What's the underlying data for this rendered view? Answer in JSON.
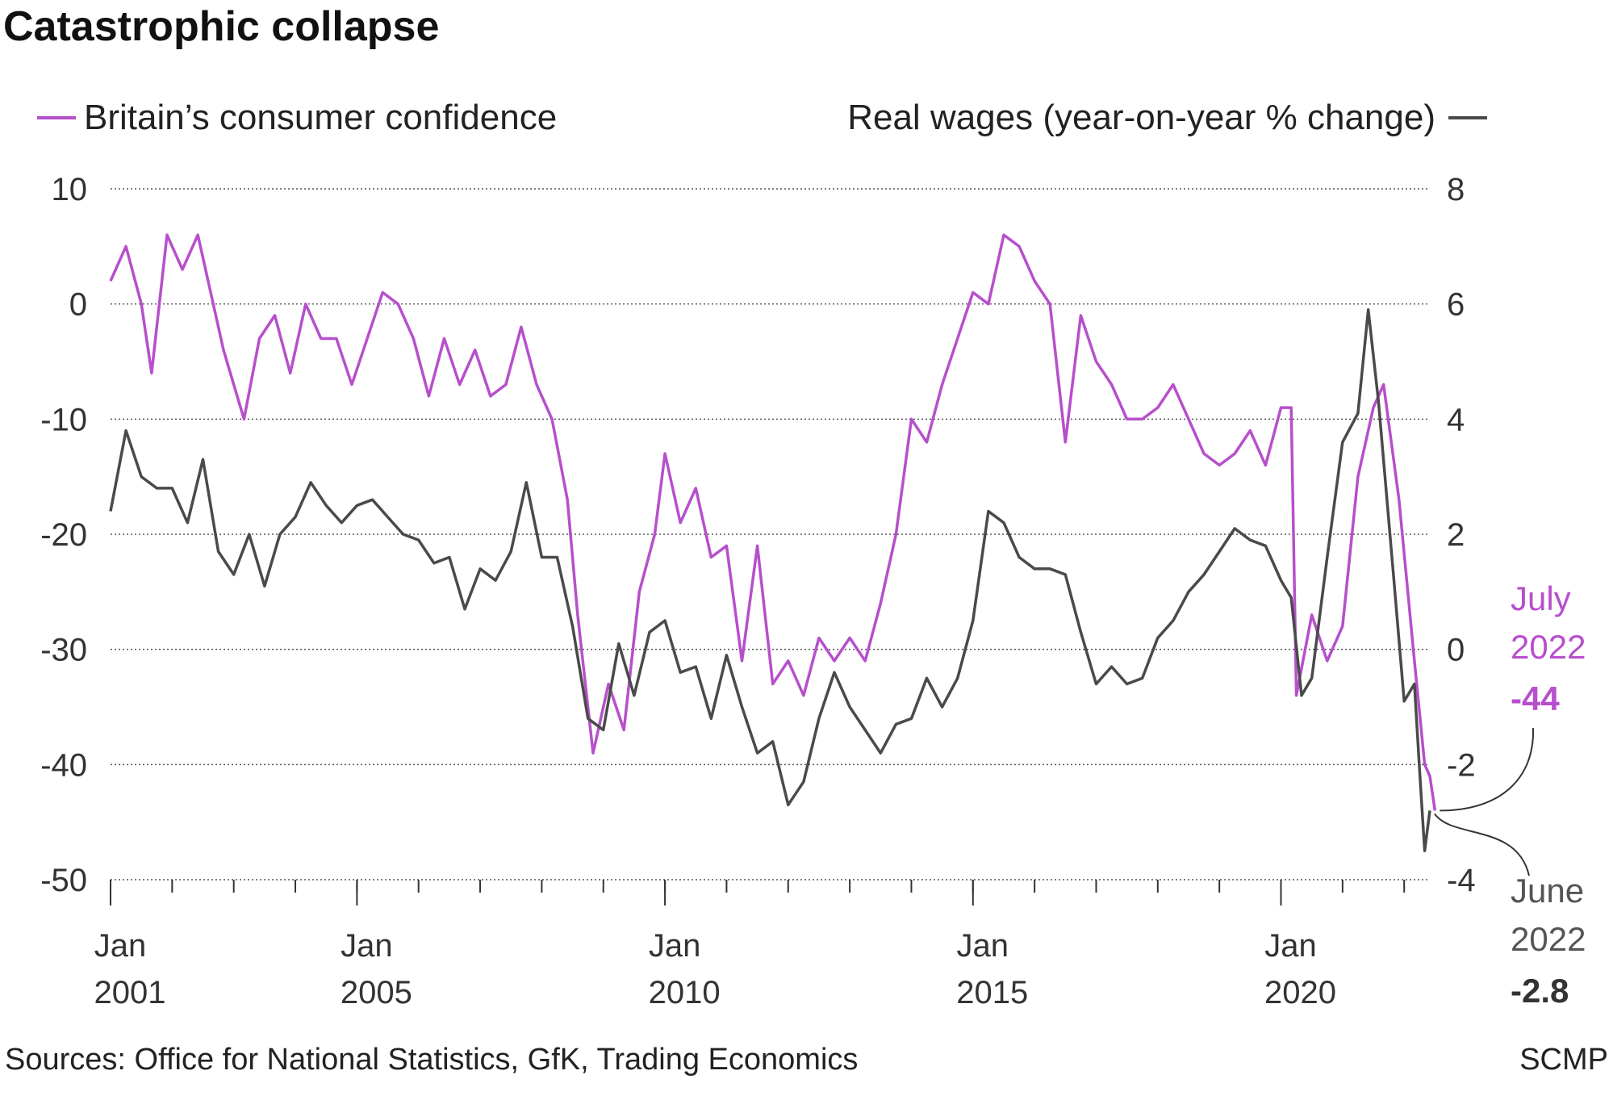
{
  "chart_data": {
    "type": "line",
    "title": "Catastrophic collapse",
    "x_tick_labels": [
      {
        "month": "Jan",
        "year": "2001"
      },
      {
        "month": "Jan",
        "year": "2005"
      },
      {
        "month": "Jan",
        "year": "2010"
      },
      {
        "month": "Jan",
        "year": "2015"
      },
      {
        "month": "Jan",
        "year": "2020"
      }
    ],
    "x_range": [
      "2001-01",
      "2022-07"
    ],
    "left_axis": {
      "ticks": [
        "10",
        "0",
        "-10",
        "-20",
        "-30",
        "-40",
        "-50"
      ],
      "ylim": [
        -50,
        10
      ]
    },
    "right_axis": {
      "ticks": [
        "8",
        "6",
        "4",
        "2",
        "0",
        "-2",
        "-4"
      ],
      "ylim": [
        -4,
        8
      ]
    },
    "grid": true,
    "legend_placement": "top",
    "series": [
      {
        "name": "Britain’s consumer confidence",
        "axis": "left",
        "color": "#b74fcc",
        "points": [
          [
            "2001-01",
            2
          ],
          [
            "2001-04",
            5
          ],
          [
            "2001-07",
            0
          ],
          [
            "2001-09",
            -6
          ],
          [
            "2001-12",
            6
          ],
          [
            "2002-03",
            3
          ],
          [
            "2002-06",
            6
          ],
          [
            "2002-08",
            2
          ],
          [
            "2002-11",
            -4
          ],
          [
            "2003-03",
            -10
          ],
          [
            "2003-06",
            -3
          ],
          [
            "2003-09",
            -1
          ],
          [
            "2003-12",
            -6
          ],
          [
            "2004-03",
            0
          ],
          [
            "2004-06",
            -3
          ],
          [
            "2004-09",
            -3
          ],
          [
            "2004-12",
            -7
          ],
          [
            "2005-03",
            -3
          ],
          [
            "2005-06",
            1
          ],
          [
            "2005-09",
            0
          ],
          [
            "2005-12",
            -3
          ],
          [
            "2006-03",
            -8
          ],
          [
            "2006-06",
            -3
          ],
          [
            "2006-09",
            -7
          ],
          [
            "2006-12",
            -4
          ],
          [
            "2007-03",
            -8
          ],
          [
            "2007-06",
            -7
          ],
          [
            "2007-09",
            -2
          ],
          [
            "2007-12",
            -7
          ],
          [
            "2008-03",
            -10
          ],
          [
            "2008-06",
            -17
          ],
          [
            "2008-08",
            -27
          ],
          [
            "2008-11",
            -39
          ],
          [
            "2009-02",
            -33
          ],
          [
            "2009-05",
            -37
          ],
          [
            "2009-08",
            -25
          ],
          [
            "2009-11",
            -20
          ],
          [
            "2010-01",
            -13
          ],
          [
            "2010-04",
            -19
          ],
          [
            "2010-07",
            -16
          ],
          [
            "2010-10",
            -22
          ],
          [
            "2011-01",
            -21
          ],
          [
            "2011-04",
            -31
          ],
          [
            "2011-07",
            -21
          ],
          [
            "2011-10",
            -33
          ],
          [
            "2012-01",
            -31
          ],
          [
            "2012-04",
            -34
          ],
          [
            "2012-07",
            -29
          ],
          [
            "2012-10",
            -31
          ],
          [
            "2013-01",
            -29
          ],
          [
            "2013-04",
            -31
          ],
          [
            "2013-07",
            -26
          ],
          [
            "2013-10",
            -20
          ],
          [
            "2014-01",
            -10
          ],
          [
            "2014-04",
            -12
          ],
          [
            "2014-07",
            -7
          ],
          [
            "2014-10",
            -3
          ],
          [
            "2015-01",
            1
          ],
          [
            "2015-04",
            0
          ],
          [
            "2015-07",
            6
          ],
          [
            "2015-10",
            5
          ],
          [
            "2016-01",
            2
          ],
          [
            "2016-04",
            0
          ],
          [
            "2016-07",
            -12
          ],
          [
            "2016-10",
            -1
          ],
          [
            "2017-01",
            -5
          ],
          [
            "2017-04",
            -7
          ],
          [
            "2017-07",
            -10
          ],
          [
            "2017-10",
            -10
          ],
          [
            "2018-01",
            -9
          ],
          [
            "2018-04",
            -7
          ],
          [
            "2018-07",
            -10
          ],
          [
            "2018-10",
            -13
          ],
          [
            "2019-01",
            -14
          ],
          [
            "2019-04",
            -13
          ],
          [
            "2019-07",
            -11
          ],
          [
            "2019-10",
            -14
          ],
          [
            "2020-01",
            -9
          ],
          [
            "2020-03",
            -9
          ],
          [
            "2020-04",
            -34
          ],
          [
            "2020-07",
            -27
          ],
          [
            "2020-10",
            -31
          ],
          [
            "2021-01",
            -28
          ],
          [
            "2021-04",
            -15
          ],
          [
            "2021-07",
            -9
          ],
          [
            "2021-09",
            -7
          ],
          [
            "2021-12",
            -17
          ],
          [
            "2022-03",
            -31
          ],
          [
            "2022-05",
            -40
          ],
          [
            "2022-06",
            -41
          ],
          [
            "2022-07",
            -44
          ]
        ],
        "end_label": {
          "period": [
            "July",
            "2022"
          ],
          "value": "-44"
        }
      },
      {
        "name": "Real wages (year-on-year % change)",
        "axis": "right",
        "color": "#4a4a4a",
        "points": [
          [
            "2001-01",
            2.4
          ],
          [
            "2001-04",
            3.8
          ],
          [
            "2001-07",
            3.0
          ],
          [
            "2001-10",
            2.8
          ],
          [
            "2002-01",
            2.8
          ],
          [
            "2002-04",
            2.2
          ],
          [
            "2002-07",
            3.3
          ],
          [
            "2002-10",
            1.7
          ],
          [
            "2003-01",
            1.3
          ],
          [
            "2003-04",
            2.0
          ],
          [
            "2003-07",
            1.1
          ],
          [
            "2003-10",
            2.0
          ],
          [
            "2004-01",
            2.3
          ],
          [
            "2004-04",
            2.9
          ],
          [
            "2004-07",
            2.5
          ],
          [
            "2004-10",
            2.2
          ],
          [
            "2005-01",
            2.5
          ],
          [
            "2005-04",
            2.6
          ],
          [
            "2005-07",
            2.3
          ],
          [
            "2005-10",
            2.0
          ],
          [
            "2006-01",
            1.9
          ],
          [
            "2006-04",
            1.5
          ],
          [
            "2006-07",
            1.6
          ],
          [
            "2006-10",
            0.7
          ],
          [
            "2007-01",
            1.4
          ],
          [
            "2007-04",
            1.2
          ],
          [
            "2007-07",
            1.7
          ],
          [
            "2007-10",
            2.9
          ],
          [
            "2008-01",
            1.6
          ],
          [
            "2008-04",
            1.6
          ],
          [
            "2008-07",
            0.4
          ],
          [
            "2008-10",
            -1.2
          ],
          [
            "2009-01",
            -1.4
          ],
          [
            "2009-04",
            0.1
          ],
          [
            "2009-07",
            -0.8
          ],
          [
            "2009-10",
            0.3
          ],
          [
            "2010-01",
            0.5
          ],
          [
            "2010-04",
            -0.4
          ],
          [
            "2010-07",
            -0.3
          ],
          [
            "2010-10",
            -1.2
          ],
          [
            "2011-01",
            -0.1
          ],
          [
            "2011-04",
            -1.0
          ],
          [
            "2011-07",
            -1.8
          ],
          [
            "2011-10",
            -1.6
          ],
          [
            "2012-01",
            -2.7
          ],
          [
            "2012-04",
            -2.3
          ],
          [
            "2012-07",
            -1.2
          ],
          [
            "2012-10",
            -0.4
          ],
          [
            "2013-01",
            -1.0
          ],
          [
            "2013-04",
            -1.4
          ],
          [
            "2013-07",
            -1.8
          ],
          [
            "2013-10",
            -1.3
          ],
          [
            "2014-01",
            -1.2
          ],
          [
            "2014-04",
            -0.5
          ],
          [
            "2014-07",
            -1.0
          ],
          [
            "2014-10",
            -0.5
          ],
          [
            "2015-01",
            0.5
          ],
          [
            "2015-04",
            2.4
          ],
          [
            "2015-07",
            2.2
          ],
          [
            "2015-10",
            1.6
          ],
          [
            "2016-01",
            1.4
          ],
          [
            "2016-04",
            1.4
          ],
          [
            "2016-07",
            1.3
          ],
          [
            "2016-10",
            0.3
          ],
          [
            "2017-01",
            -0.6
          ],
          [
            "2017-04",
            -0.3
          ],
          [
            "2017-07",
            -0.6
          ],
          [
            "2017-10",
            -0.5
          ],
          [
            "2018-01",
            0.2
          ],
          [
            "2018-04",
            0.5
          ],
          [
            "2018-07",
            1.0
          ],
          [
            "2018-10",
            1.3
          ],
          [
            "2019-01",
            1.7
          ],
          [
            "2019-04",
            2.1
          ],
          [
            "2019-07",
            1.9
          ],
          [
            "2019-10",
            1.8
          ],
          [
            "2020-01",
            1.2
          ],
          [
            "2020-03",
            0.9
          ],
          [
            "2020-05",
            -0.8
          ],
          [
            "2020-07",
            -0.5
          ],
          [
            "2020-10",
            1.6
          ],
          [
            "2021-01",
            3.6
          ],
          [
            "2021-04",
            4.1
          ],
          [
            "2021-06",
            5.9
          ],
          [
            "2021-08",
            4.3
          ],
          [
            "2021-11",
            1.2
          ],
          [
            "2022-01",
            -0.9
          ],
          [
            "2022-03",
            -0.6
          ],
          [
            "2022-04",
            -2.1
          ],
          [
            "2022-05",
            -3.5
          ],
          [
            "2022-06",
            -2.8
          ]
        ],
        "end_label": {
          "period": [
            "June",
            "2022"
          ],
          "value": "-2.8"
        }
      }
    ],
    "source": "Sources: Office for National Statistics, GfK, Trading Economics",
    "credit": "SCMP"
  }
}
